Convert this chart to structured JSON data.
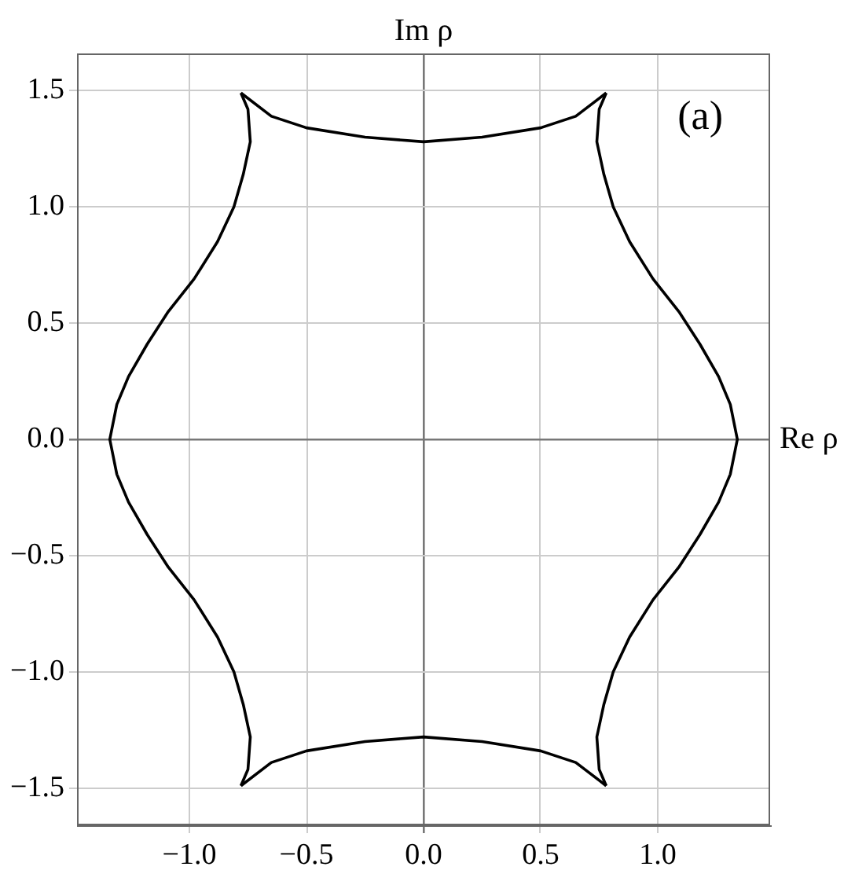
{
  "chart_data": {
    "type": "line",
    "xlabel": "Re ρ",
    "ylabel": "Im ρ",
    "annotations": [
      "(a)"
    ],
    "series": [
      {
        "color": "#000000",
        "x": [
          -0.78,
          -0.65,
          -0.5,
          -0.25,
          0,
          0.25,
          0.5,
          0.65,
          0.78
        ],
        "values": [
          1.49,
          1.39,
          1.34,
          1.3,
          1.28,
          1.3,
          1.34,
          1.39,
          1.49
        ]
      },
      {
        "color": "#000000",
        "x": [
          0.78,
          0.75,
          0.74,
          0.77,
          0.81,
          0.88,
          0.98,
          1.09,
          1.18,
          1.26,
          1.31,
          1.34,
          1.31,
          1.26,
          1.18,
          1.09,
          0.98,
          0.88,
          0.81,
          0.77,
          0.74,
          0.75,
          0.78
        ],
        "values": [
          1.49,
          1.42,
          1.28,
          1.14,
          1.0,
          0.85,
          0.69,
          0.55,
          0.41,
          0.27,
          0.15,
          0,
          -0.15,
          -0.27,
          -0.41,
          -0.55,
          -0.69,
          -0.85,
          -1.0,
          -1.14,
          -1.28,
          -1.42,
          -1.49
        ]
      },
      {
        "color": "#000000",
        "x": [
          -0.78,
          -0.65,
          -0.5,
          -0.25,
          0,
          0.25,
          0.5,
          0.65,
          0.78
        ],
        "values": [
          -1.49,
          -1.39,
          -1.34,
          -1.3,
          -1.28,
          -1.3,
          -1.34,
          -1.39,
          -1.49
        ]
      },
      {
        "color": "#000000",
        "x": [
          -0.78,
          -0.75,
          -0.74,
          -0.77,
          -0.81,
          -0.88,
          -0.98,
          -1.09,
          -1.18,
          -1.26,
          -1.31,
          -1.34,
          -1.31,
          -1.26,
          -1.18,
          -1.09,
          -0.98,
          -0.88,
          -0.81,
          -0.77,
          -0.74,
          -0.75,
          -0.78
        ],
        "values": [
          1.49,
          1.42,
          1.28,
          1.14,
          1.0,
          0.85,
          0.69,
          0.55,
          0.41,
          0.27,
          0.15,
          0,
          -0.15,
          -0.27,
          -0.41,
          -0.55,
          -0.69,
          -0.85,
          -1.0,
          -1.14,
          -1.28,
          -1.42,
          -1.49
        ]
      }
    ],
    "marker": "none",
    "line_style": "solid",
    "grid": true,
    "xlim": [
      -1.48,
      1.48
    ],
    "ylim": [
      -1.66,
      1.66
    ],
    "xticks": [
      {
        "value": -1,
        "label": "−1.0"
      },
      {
        "value": -0.5,
        "label": "−0.5"
      },
      {
        "value": 0,
        "label": "0.0"
      },
      0.5,
      {
        "value": 1,
        "label": "1.0"
      }
    ],
    "yticks": [
      {
        "value": -1.5,
        "label": "−1.5"
      },
      {
        "value": -1,
        "label": "−1.0"
      },
      {
        "value": -0.5,
        "label": "−0.5"
      },
      {
        "value": 0,
        "label": "0.0"
      },
      0.5,
      {
        "value": 1,
        "label": "1.0"
      },
      1.5
    ]
  }
}
